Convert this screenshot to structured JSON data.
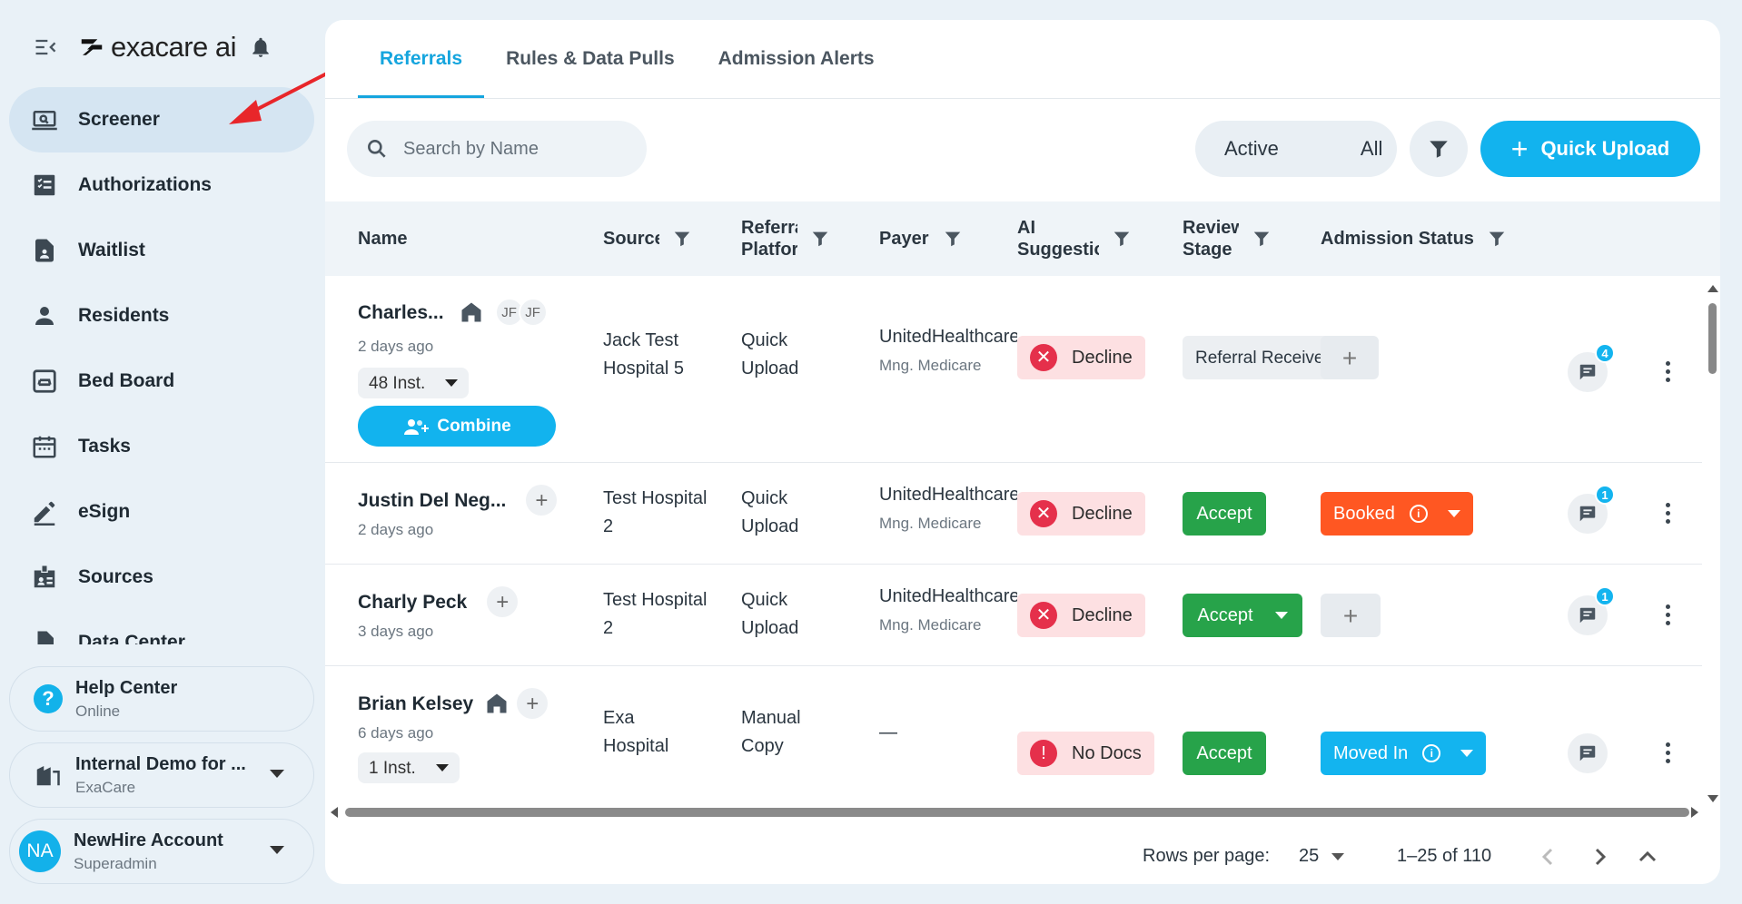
{
  "brand": {
    "name": "exacare ai"
  },
  "sidebar": {
    "items": [
      {
        "label": "Screener",
        "icon": "laptop-search-icon"
      },
      {
        "label": "Authorizations",
        "icon": "checklist-icon"
      },
      {
        "label": "Waitlist",
        "icon": "document-icon"
      },
      {
        "label": "Residents",
        "icon": "person-icon"
      },
      {
        "label": "Bed Board",
        "icon": "bed-icon"
      },
      {
        "label": "Tasks",
        "icon": "calendar-icon"
      },
      {
        "label": "eSign",
        "icon": "pen-icon"
      },
      {
        "label": "Sources",
        "icon": "id-badge-icon"
      },
      {
        "label": "Data Center",
        "icon": "data-icon"
      }
    ],
    "help": {
      "title": "Help Center",
      "status": "Online"
    },
    "org": {
      "name": "Internal Demo for ...",
      "sub": "ExaCare"
    },
    "account": {
      "initials": "NA",
      "name": "NewHire Account",
      "role": "Superadmin"
    }
  },
  "tabs": [
    "Referrals",
    "Rules & Data Pulls",
    "Admission Alerts"
  ],
  "toolbar": {
    "search_placeholder": "Search by Name",
    "seg_active": "Active",
    "seg_all": "All",
    "upload_label": "Quick Upload"
  },
  "table": {
    "headers": {
      "name": "Name",
      "source": "Source",
      "platform": "Referral Platform",
      "payer": "Payer",
      "ai": "AI Suggestion",
      "review": "Review Stage",
      "admission": "Admission Status"
    },
    "rows": [
      {
        "name": "Charles...",
        "time": "2 days ago",
        "initials": [
          "JF",
          "JF"
        ],
        "inst": "48 Inst.",
        "combine": "Combine",
        "source": "Jack Test Hospital 5",
        "platform": "Quick Upload",
        "payer": "UnitedHealthcare",
        "payer_sub": "Mng. Medicare",
        "ai": "Decline",
        "review": "Referral Received",
        "messages": "4"
      },
      {
        "name": "Justin Del Neg...",
        "time": "2 days ago",
        "source": "Test Hospital 2",
        "platform": "Quick Upload",
        "payer": "UnitedHealthcare",
        "payer_sub": "Mng. Medicare",
        "ai": "Decline",
        "review": "Accept",
        "admission": "Booked",
        "messages": "1"
      },
      {
        "name": "Charly Peck",
        "time": "3 days ago",
        "source": "Test Hospital 2",
        "platform": "Quick Upload",
        "payer": "UnitedHealthcare",
        "payer_sub": "Mng. Medicare",
        "ai": "Decline",
        "review": "Accept",
        "messages": "1"
      },
      {
        "name": "Brian Kelsey",
        "time": "6 days ago",
        "inst": "1 Inst.",
        "source": "Exa Hospital",
        "platform": "Manual Copy",
        "payer": "—",
        "ai": "No Docs",
        "review": "Accept",
        "admission": "Moved In"
      }
    ]
  },
  "pager": {
    "rows_label": "Rows per page:",
    "rows_value": "25",
    "range": "1–25 of 110"
  },
  "colors": {
    "accent": "#12b3ee",
    "accept": "#27a34a",
    "booked": "#ff5722",
    "decline_bg": "#fde0e2"
  }
}
